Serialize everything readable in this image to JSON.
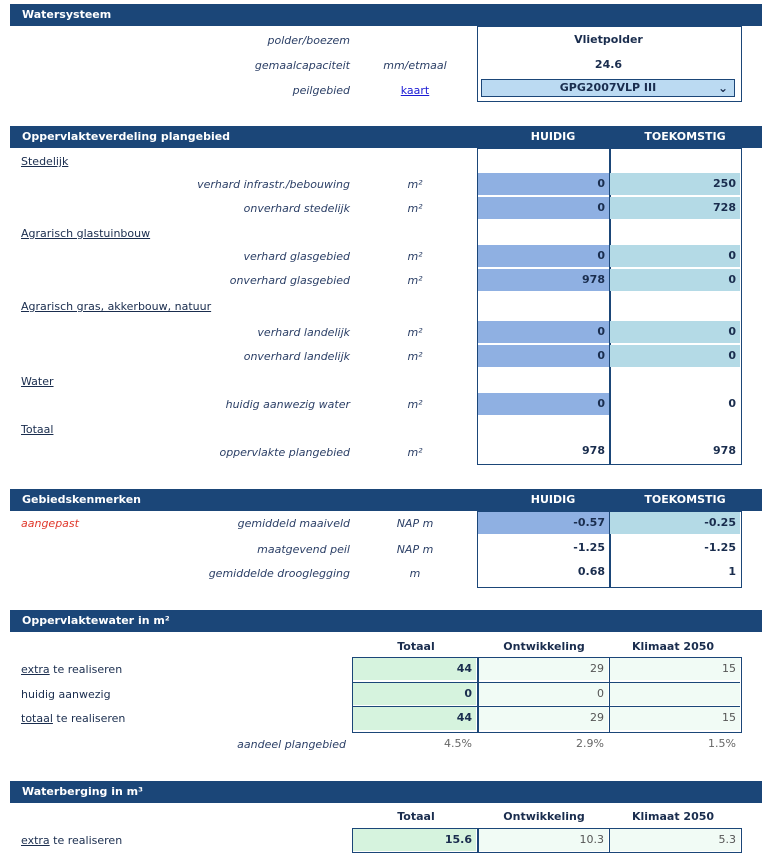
{
  "watersysteem": {
    "title": "Watersysteem",
    "rows": [
      {
        "label": "polder/boezem",
        "unit": "",
        "value": "Vlietpolder"
      },
      {
        "label": "gemaalcapaciteit",
        "unit": "mm/etmaal",
        "value": "24.6"
      },
      {
        "label": "peilgebied",
        "link": "kaart",
        "value": "GPG2007VLP III"
      }
    ]
  },
  "oppervlakte": {
    "title": "Oppervlakteverdeling plangebied",
    "col_huidig": "HUIDIG",
    "col_toekomstig": "TOEKOMSTIG",
    "sections": [
      {
        "name": "Stedelijk",
        "rows": [
          {
            "label": "verhard infrastr./bebouwing",
            "unit": "m²",
            "huidig": "0",
            "toekomstig": "250"
          },
          {
            "label": "onverhard stedelijk",
            "unit": "m²",
            "huidig": "0",
            "toekomstig": "728"
          }
        ]
      },
      {
        "name": "Agrarisch glastuinbouw",
        "rows": [
          {
            "label": "verhard glasgebied",
            "unit": "m²",
            "huidig": "0",
            "toekomstig": "0"
          },
          {
            "label": "onverhard glasgebied",
            "unit": "m²",
            "huidig": "978",
            "toekomstig": "0"
          }
        ]
      },
      {
        "name": "Agrarisch gras, akkerbouw, natuur",
        "rows": [
          {
            "label": "verhard landelijk",
            "unit": "m²",
            "huidig": "0",
            "toekomstig": "0"
          },
          {
            "label": "onverhard landelijk",
            "unit": "m²",
            "huidig": "0",
            "toekomstig": "0"
          }
        ]
      },
      {
        "name": "Water",
        "rows": [
          {
            "label": "huidig aanwezig water",
            "unit": "m²",
            "huidig": "0",
            "toekomstig": "0"
          }
        ]
      },
      {
        "name": "Totaal",
        "rows": [
          {
            "label": "oppervlakte plangebied",
            "unit": "m²",
            "huidig": "978",
            "toekomstig": "978"
          }
        ]
      }
    ]
  },
  "gebied": {
    "title": "Gebiedskenmerken",
    "col_huidig": "HUIDIG",
    "col_toekomstig": "TOEKOMSTIG",
    "flag": "aangepast",
    "rows": [
      {
        "label": "gemiddeld maaiveld",
        "unit": "NAP m",
        "huidig": "-0.57",
        "toekomstig": "-0.25"
      },
      {
        "label": "maatgevend peil",
        "unit": "NAP m",
        "huidig": "-1.25",
        "toekomstig": "-1.25"
      },
      {
        "label": "gemiddelde drooglegging",
        "unit": "m",
        "huidig": "0.68",
        "toekomstig": "1"
      }
    ]
  },
  "oppwater": {
    "title": "Oppervlaktewater in m²",
    "cols": [
      "Totaal",
      "Ontwikkeling",
      "Klimaat 2050"
    ],
    "rows": [
      {
        "u": "extra",
        "rest": " te realiseren",
        "vals": [
          "44",
          "29",
          "15"
        ]
      },
      {
        "u": "",
        "rest": "huidig aanwezig",
        "vals": [
          "0",
          "0",
          ""
        ]
      },
      {
        "u": "totaal",
        "rest": " te realiseren",
        "vals": [
          "44",
          "29",
          "15"
        ]
      }
    ],
    "aandeel_label": "aandeel plangebied",
    "aandeel": [
      "4.5%",
      "2.9%",
      "1.5%"
    ]
  },
  "waterberging": {
    "title": "Waterberging in m³",
    "cols": [
      "Totaal",
      "Ontwikkeling",
      "Klimaat 2050"
    ],
    "row": {
      "u": "extra",
      "rest": " te realiseren",
      "vals": [
        "15.6",
        "10.3",
        "5.3"
      ]
    }
  },
  "colors": {
    "header": "#1b4678",
    "huidig": "#8fb0e2",
    "toekomstig": "#b4dae6",
    "totaal": "#d6f3de",
    "flag": "#e0382b"
  },
  "icons": {
    "dropdown": "chevron-down-icon"
  }
}
